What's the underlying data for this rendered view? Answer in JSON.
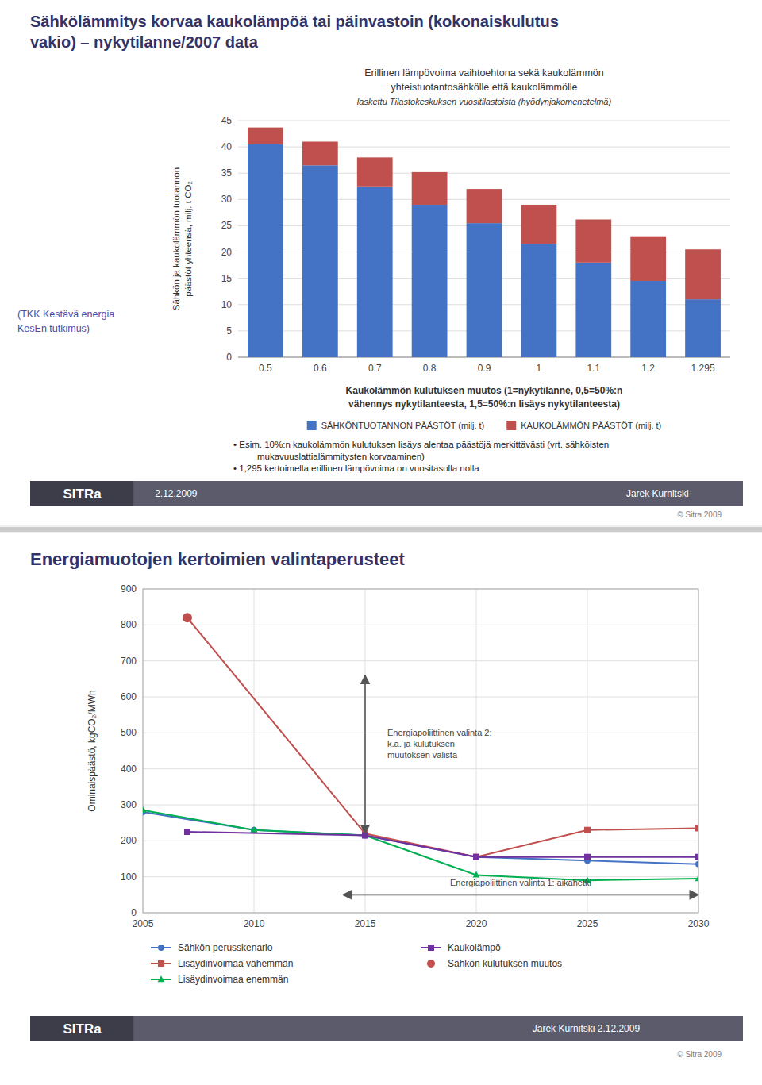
{
  "chart_data": [
    {
      "type": "bar",
      "stacked": true,
      "title": "Sähkölämmitys korvaa kaukolämpöä tai päinvastoin (kokonaiskulutus\nvakio) – nykytilanne/2007 data",
      "subtitle": [
        "Erillinen lämpövoima vaihtoehtona sekä kaukolämmön",
        "yhteistuotantosähkölle että kaukolämmölle",
        "laskettu Tilastokeskuksen vuositilastoista (hyödynjakomenetelmä)"
      ],
      "ylabel": "Sähkön ja kaukolämmön tuotannon\npäästöt yhteensä, milj. t CO₂",
      "xlabel": [
        "Kaukolämmön kulutuksen muutos (1=nykytilanne, 0,5=50%:n",
        "vähennys nykytilanteesta, 1,5=50%:n lisäys nykytilanteesta)"
      ],
      "categories": [
        "0.5",
        "0.6",
        "0.7",
        "0.8",
        "0.9",
        "1",
        "1.1",
        "1.2",
        "1.295"
      ],
      "series": [
        {
          "name": "SÄHKÖNTUOTANNON PÄÄSTÖT (milj. t)",
          "color": "#4472C4",
          "values": [
            40.5,
            36.5,
            32.5,
            29.0,
            25.5,
            21.5,
            18.0,
            14.5,
            11.0
          ]
        },
        {
          "name": "KAUKOLÄMMÖN PÄÄSTÖT (milj. t)",
          "color": "#C0504D",
          "values": [
            3.2,
            4.5,
            5.5,
            6.2,
            6.5,
            7.5,
            8.2,
            8.5,
            9.5
          ]
        }
      ],
      "ylim": [
        0,
        45
      ],
      "yticks": [
        0,
        5,
        10,
        15,
        20,
        25,
        30,
        35,
        40,
        45
      ],
      "grid": "y",
      "legend": "bottom",
      "annotations": [
        {
          "text": "(TKK Kestävä energia"
        },
        {
          "text": "KesEn tutkimus)"
        },
        {
          "text": "• Esim. 10%:n kaukolämmön kulutuksen lisäys alentaa päästöjä merkittävästi (vrt. sähköisten"
        },
        {
          "text": "mukavuuslattialämmitysten korvaaminen)"
        },
        {
          "text": "• 1,295 kertoimella erillinen lämpövoima on vuositasolla nolla"
        },
        {
          "text": "SITRa"
        },
        {
          "text": "2.12.2009"
        },
        {
          "text": "Jarek Kurnitski"
        },
        {
          "text": "© Sitra 2009"
        }
      ]
    },
    {
      "type": "line",
      "title": "Energiamuotojen kertoimien valintaperusteet",
      "ylabel": "Ominaispäästö, kgCO₂/MWh",
      "xlim": [
        2005,
        2030
      ],
      "ylim": [
        0,
        900
      ],
      "xticks": [
        2005,
        2010,
        2015,
        2020,
        2025,
        2030
      ],
      "yticks": [
        0,
        100,
        200,
        300,
        400,
        500,
        600,
        700,
        800,
        900
      ],
      "grid": true,
      "legend": "bottom",
      "series": [
        {
          "name": "Sähkön perusskenario",
          "color": "#4472C4",
          "marker": "circle",
          "x": [
            2005,
            2010,
            2015,
            2020,
            2025,
            2030
          ],
          "values": [
            280,
            230,
            215,
            155,
            145,
            135
          ]
        },
        {
          "name": "Lisäydinvoimaa vähemmän",
          "color": "#C0504D",
          "marker": "square",
          "x": [
            2007,
            2015,
            2020,
            2025,
            2030
          ],
          "values": [
            820,
            220,
            155,
            230,
            235
          ]
        },
        {
          "name": "Lisäydinvoimaa enemmän",
          "color": "#00B050",
          "marker": "triangle",
          "x": [
            2005,
            2010,
            2015,
            2020,
            2025,
            2030
          ],
          "values": [
            285,
            230,
            215,
            105,
            90,
            95
          ]
        },
        {
          "name": "Kaukolämpö",
          "color": "#7030A0",
          "marker": "square",
          "x": [
            2007,
            2015,
            2020,
            2025,
            2030
          ],
          "values": [
            225,
            215,
            155,
            155,
            155
          ]
        },
        {
          "name": "Sähkön kulutuksen muutos",
          "color": "#C0504D",
          "marker": "circle",
          "line_style": "none",
          "x": [
            2007
          ],
          "values": [
            820
          ]
        }
      ],
      "annotations": [
        {
          "text": "Energiapoliittinen valinta 2:\nk.a. ja kulutuksen\nmuutoksen välistä",
          "x": 2016,
          "y": 470,
          "arrow": {
            "x": [
              2015,
              2015
            ],
            "y": [
              660,
              220
            ]
          }
        },
        {
          "text": "Energiapoliittinen valinta 1: aikahetki",
          "x": 2022,
          "y": 75,
          "arrow": {
            "x": [
              2014,
              2030
            ],
            "y": [
              50,
              50
            ]
          }
        },
        {
          "text": "SITRa"
        },
        {
          "text": "Jarek Kurnitski   2.12.2009"
        },
        {
          "text": "© Sitra 2009"
        }
      ]
    }
  ]
}
